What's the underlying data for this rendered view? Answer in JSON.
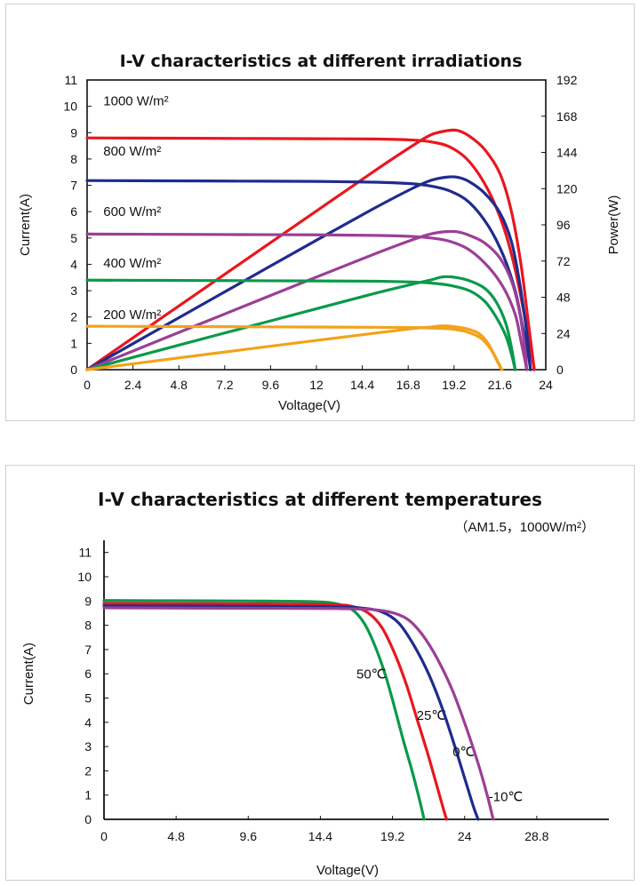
{
  "chart_data": [
    {
      "type": "line",
      "title": "I-V characteristics at different irradiations",
      "xlabel": "Voltage(V)",
      "ylabel": "Current(A)",
      "y2label": "Power(W)",
      "xlim": [
        0,
        24
      ],
      "ylim": [
        0,
        11
      ],
      "y2lim": [
        0,
        192
      ],
      "x_ticks": [
        "0",
        "2.4",
        "4.8",
        "7.2",
        "9.6",
        "12",
        "14.4",
        "16.8",
        "19.2",
        "21.6",
        "24"
      ],
      "y_ticks": [
        "0",
        "1",
        "2",
        "3",
        "4",
        "5",
        "6",
        "7",
        "8",
        "9",
        "10",
        "11"
      ],
      "y2_ticks": [
        "0",
        "24",
        "48",
        "72",
        "96",
        "120",
        "144",
        "168",
        "192"
      ],
      "grid": false,
      "series": [
        {
          "name": "1000 W/m²",
          "color": "#e8171f",
          "iv": [
            [
              0,
              8.8
            ],
            [
              4,
              8.79
            ],
            [
              8,
              8.78
            ],
            [
              12,
              8.77
            ],
            [
              15,
              8.76
            ],
            [
              17,
              8.72
            ],
            [
              18,
              8.65
            ],
            [
              19,
              8.45
            ],
            [
              20,
              7.9
            ],
            [
              21,
              6.8
            ],
            [
              21.8,
              5.4
            ],
            [
              22.4,
              3.8
            ],
            [
              22.9,
              2.0
            ],
            [
              23.2,
              0.8
            ],
            [
              23.4,
              0
            ]
          ],
          "pv": [
            [
              0,
              0
            ],
            [
              4,
              35.2
            ],
            [
              8,
              70.2
            ],
            [
              12,
              105.2
            ],
            [
              15,
              131.4
            ],
            [
              17,
              148.2
            ],
            [
              18,
              155.7
            ],
            [
              18.8,
              158.3
            ],
            [
              19.4,
              158.5
            ],
            [
              20,
              154.8
            ],
            [
              20.8,
              146
            ],
            [
              21.6,
              130
            ],
            [
              22.2,
              105
            ],
            [
              22.7,
              70
            ],
            [
              23.1,
              30
            ],
            [
              23.4,
              0
            ]
          ]
        },
        {
          "name": "800 W/m²",
          "color": "#1f2b8f",
          "iv": [
            [
              0,
              7.18
            ],
            [
              4,
              7.17
            ],
            [
              8,
              7.16
            ],
            [
              12,
              7.15
            ],
            [
              15,
              7.12
            ],
            [
              17,
              7.06
            ],
            [
              18,
              6.97
            ],
            [
              19,
              6.78
            ],
            [
              20,
              6.35
            ],
            [
              21,
              5.45
            ],
            [
              21.8,
              4.3
            ],
            [
              22.4,
              3.0
            ],
            [
              22.8,
              1.6
            ],
            [
              23.1,
              0.5
            ],
            [
              23.2,
              0
            ]
          ],
          "pv": [
            [
              0,
              0
            ],
            [
              4,
              28.7
            ],
            [
              8,
              57.3
            ],
            [
              12,
              85.8
            ],
            [
              15,
              106.8
            ],
            [
              17,
              120
            ],
            [
              18,
              125.5
            ],
            [
              18.8,
              127.6
            ],
            [
              19.4,
              127.5
            ],
            [
              20,
              124.6
            ],
            [
              20.8,
              117
            ],
            [
              21.6,
              104
            ],
            [
              22.2,
              85
            ],
            [
              22.6,
              60
            ],
            [
              23,
              25
            ],
            [
              23.2,
              0
            ]
          ]
        },
        {
          "name": "600 W/m²",
          "color": "#9b3f96",
          "iv": [
            [
              0,
              5.15
            ],
            [
              4,
              5.14
            ],
            [
              8,
              5.13
            ],
            [
              12,
              5.12
            ],
            [
              15,
              5.1
            ],
            [
              17,
              5.06
            ],
            [
              18,
              5.0
            ],
            [
              19,
              4.87
            ],
            [
              20,
              4.55
            ],
            [
              21,
              3.9
            ],
            [
              21.8,
              3.1
            ],
            [
              22.4,
              2.1
            ],
            [
              22.7,
              1.1
            ],
            [
              22.9,
              0.4
            ],
            [
              23.0,
              0
            ]
          ],
          "pv": [
            [
              0,
              0
            ],
            [
              4,
              20.6
            ],
            [
              8,
              41.0
            ],
            [
              12,
              61.4
            ],
            [
              15,
              76.5
            ],
            [
              17,
              86
            ],
            [
              18,
              90
            ],
            [
              18.8,
              91.5
            ],
            [
              19.4,
              91.3
            ],
            [
              20,
              89
            ],
            [
              20.8,
              84
            ],
            [
              21.6,
              74
            ],
            [
              22.2,
              59
            ],
            [
              22.6,
              40
            ],
            [
              22.9,
              15
            ],
            [
              23.0,
              0
            ]
          ]
        },
        {
          "name": "400 W/m²",
          "color": "#0a9a4a",
          "iv": [
            [
              0,
              3.4
            ],
            [
              4,
              3.39
            ],
            [
              8,
              3.38
            ],
            [
              12,
              3.37
            ],
            [
              15,
              3.36
            ],
            [
              17,
              3.33
            ],
            [
              18,
              3.29
            ],
            [
              19,
              3.2
            ],
            [
              20,
              3.0
            ],
            [
              20.8,
              2.6
            ],
            [
              21.4,
              2.0
            ],
            [
              21.9,
              1.3
            ],
            [
              22.2,
              0.6
            ],
            [
              22.4,
              0
            ]
          ],
          "pv": [
            [
              0,
              0
            ],
            [
              4,
              13.6
            ],
            [
              8,
              27.0
            ],
            [
              12,
              40.4
            ],
            [
              15,
              50.4
            ],
            [
              17,
              56.6
            ],
            [
              18,
              59.5
            ],
            [
              18.6,
              61.5
            ],
            [
              19.2,
              61.3
            ],
            [
              20,
              59
            ],
            [
              20.8,
              54
            ],
            [
              21.4,
              45
            ],
            [
              21.9,
              31
            ],
            [
              22.2,
              15
            ],
            [
              22.4,
              0
            ]
          ]
        },
        {
          "name": "200 W/m²",
          "color": "#f3a21c",
          "iv": [
            [
              0,
              1.65
            ],
            [
              4,
              1.64
            ],
            [
              8,
              1.63
            ],
            [
              12,
              1.62
            ],
            [
              15,
              1.61
            ],
            [
              17,
              1.6
            ],
            [
              18,
              1.58
            ],
            [
              19,
              1.55
            ],
            [
              19.8,
              1.45
            ],
            [
              20.6,
              1.2
            ],
            [
              21.1,
              0.8
            ],
            [
              21.5,
              0.3
            ],
            [
              21.7,
              0
            ]
          ],
          "pv": [
            [
              0,
              0
            ],
            [
              4,
              6.5
            ],
            [
              8,
              13.0
            ],
            [
              12,
              19.4
            ],
            [
              15,
              24.1
            ],
            [
              17,
              27.2
            ],
            [
              18,
              28.3
            ],
            [
              18.6,
              29.0
            ],
            [
              19.2,
              28.5
            ],
            [
              19.9,
              27
            ],
            [
              20.5,
              24
            ],
            [
              21.0,
              17
            ],
            [
              21.4,
              7
            ],
            [
              21.7,
              0
            ]
          ]
        }
      ]
    },
    {
      "type": "line",
      "title": "I-V characteristics at different temperatures",
      "subtitle": "（AM1.5，1000W/m²）",
      "xlabel": "Voltage(V)",
      "ylabel": "Current(A)",
      "xlim": [
        0,
        33.6
      ],
      "ylim": [
        0,
        11.5
      ],
      "x_ticks": [
        {
          "v": 0,
          "label": "0"
        },
        {
          "v": 4.8,
          "label": "4.8"
        },
        {
          "v": 9.6,
          "label": "9.6"
        },
        {
          "v": 14.4,
          "label": "14.4"
        },
        {
          "v": 19.2,
          "label": "19.2"
        },
        {
          "v": 24,
          "label": "24"
        },
        {
          "v": 28.8,
          "label": "28.8"
        }
      ],
      "y_ticks": [
        "0",
        "1",
        "2",
        "3",
        "4",
        "5",
        "6",
        "7",
        "8",
        "9",
        "10",
        "11"
      ],
      "grid": false,
      "series": [
        {
          "name": "50℃",
          "color": "#0a9a4a",
          "iv": [
            [
              0,
              9.02
            ],
            [
              5,
              9.01
            ],
            [
              10,
              9.0
            ],
            [
              14,
              8.97
            ],
            [
              15.5,
              8.88
            ],
            [
              16.5,
              8.65
            ],
            [
              17.3,
              8.1
            ],
            [
              18,
              7.2
            ],
            [
              18.7,
              6.0
            ],
            [
              19.3,
              4.7
            ],
            [
              19.9,
              3.3
            ],
            [
              20.5,
              2.0
            ],
            [
              21.0,
              0.8
            ],
            [
              21.3,
              0
            ]
          ],
          "label_pos": [
            16.8,
            5.8
          ]
        },
        {
          "name": "25℃",
          "color": "#e8171f",
          "iv": [
            [
              0,
              8.9
            ],
            [
              5,
              8.89
            ],
            [
              10,
              8.88
            ],
            [
              15,
              8.85
            ],
            [
              16.5,
              8.78
            ],
            [
              17.6,
              8.5
            ],
            [
              18.5,
              7.9
            ],
            [
              19.3,
              6.9
            ],
            [
              20.1,
              5.6
            ],
            [
              20.8,
              4.2
            ],
            [
              21.5,
              2.8
            ],
            [
              22.1,
              1.5
            ],
            [
              22.6,
              0.4
            ],
            [
              22.8,
              0
            ]
          ],
          "label_pos": [
            20.8,
            4.1
          ]
        },
        {
          "name": "0℃",
          "color": "#1f2b8f",
          "iv": [
            [
              0,
              8.8
            ],
            [
              5,
              8.79
            ],
            [
              10,
              8.78
            ],
            [
              15,
              8.76
            ],
            [
              17,
              8.72
            ],
            [
              18.5,
              8.55
            ],
            [
              19.6,
              8.1
            ],
            [
              20.6,
              7.2
            ],
            [
              21.6,
              6.0
            ],
            [
              22.5,
              4.6
            ],
            [
              23.3,
              3.1
            ],
            [
              24.0,
              1.7
            ],
            [
              24.6,
              0.5
            ],
            [
              24.9,
              0
            ]
          ],
          "label_pos": [
            23.2,
            2.6
          ]
        },
        {
          "name": "-10℃",
          "color": "#9b3f96",
          "iv": [
            [
              0,
              8.72
            ],
            [
              5,
              8.71
            ],
            [
              10,
              8.7
            ],
            [
              15,
              8.69
            ],
            [
              17.5,
              8.66
            ],
            [
              19,
              8.55
            ],
            [
              20.2,
              8.25
            ],
            [
              21.2,
              7.6
            ],
            [
              22.2,
              6.6
            ],
            [
              23.2,
              5.3
            ],
            [
              24.1,
              3.8
            ],
            [
              24.9,
              2.3
            ],
            [
              25.5,
              1.0
            ],
            [
              25.9,
              0
            ]
          ],
          "label_pos": [
            25.6,
            0.75
          ]
        }
      ]
    }
  ]
}
